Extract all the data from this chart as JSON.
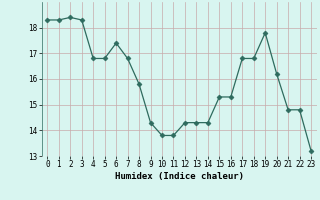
{
  "x": [
    0,
    1,
    2,
    3,
    4,
    5,
    6,
    7,
    8,
    9,
    10,
    11,
    12,
    13,
    14,
    15,
    16,
    17,
    18,
    19,
    20,
    21,
    22,
    23
  ],
  "y": [
    18.3,
    18.3,
    18.4,
    18.3,
    16.8,
    16.8,
    17.4,
    16.8,
    15.8,
    14.3,
    13.8,
    13.8,
    14.3,
    14.3,
    14.3,
    15.3,
    15.3,
    16.8,
    16.8,
    17.8,
    16.2,
    14.8,
    14.8,
    13.2
  ],
  "line_color": "#2e6b5e",
  "marker": "D",
  "marker_size": 2.5,
  "bg_color": "#d8f5f0",
  "grid_color_v": "#c8aaaa",
  "grid_color_h": "#c8aaaa",
  "xlabel": "Humidex (Indice chaleur)",
  "ylim_min": 13,
  "ylim_max": 19,
  "xlim_min": -0.5,
  "xlim_max": 23.5,
  "yticks": [
    13,
    14,
    15,
    16,
    17,
    18
  ],
  "xticks": [
    0,
    1,
    2,
    3,
    4,
    5,
    6,
    7,
    8,
    9,
    10,
    11,
    12,
    13,
    14,
    15,
    16,
    17,
    18,
    19,
    20,
    21,
    22,
    23
  ],
  "tick_fontsize": 5.5,
  "xlabel_fontsize": 6.5
}
